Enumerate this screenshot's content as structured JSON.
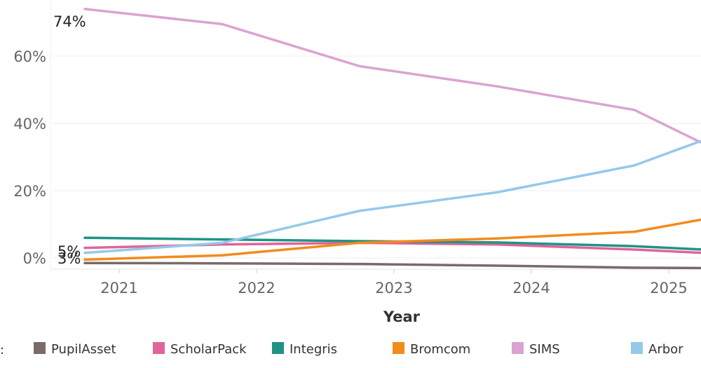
{
  "chart_data": {
    "type": "line",
    "title": "",
    "xlabel": "Year",
    "ylabel": "",
    "x": [
      2020.75,
      2021.75,
      2022.75,
      2023.75,
      2024.75,
      2025.25
    ],
    "x_ticks": [
      "2021",
      "2022",
      "2023",
      "2024",
      "2025"
    ],
    "y_ticks": [
      "0%",
      "20%",
      "40%",
      "60%"
    ],
    "ylim": [
      0,
      80
    ],
    "legend_marker": ":",
    "legend_position": "bottom",
    "annotations": [
      "74%",
      "5%",
      "3%"
    ],
    "series": [
      {
        "name": "PupilAsset",
        "color": "#7a6a6a",
        "values": [
          -1.5,
          -1.6,
          -1.8,
          -2.3,
          -2.9,
          -3.0
        ]
      },
      {
        "name": "ScholarPack",
        "color": "#e0649a",
        "values": [
          3.0,
          4.0,
          4.5,
          4.0,
          2.5,
          1.5
        ]
      },
      {
        "name": "Integris",
        "color": "#1f9484",
        "values": [
          6.0,
          5.5,
          5.0,
          4.6,
          3.5,
          2.5
        ]
      },
      {
        "name": "Bromcom",
        "color": "#f28b1c",
        "values": [
          -0.5,
          0.8,
          4.5,
          5.8,
          7.8,
          11.5
        ]
      },
      {
        "name": "SIMS",
        "color": "#dba3d1",
        "values": [
          74.0,
          69.5,
          57.0,
          51.0,
          44.0,
          34.0
        ]
      },
      {
        "name": "Arbor",
        "color": "#94c9ea",
        "values": [
          1.5,
          4.5,
          14.0,
          19.5,
          27.5,
          35.0
        ]
      }
    ]
  }
}
